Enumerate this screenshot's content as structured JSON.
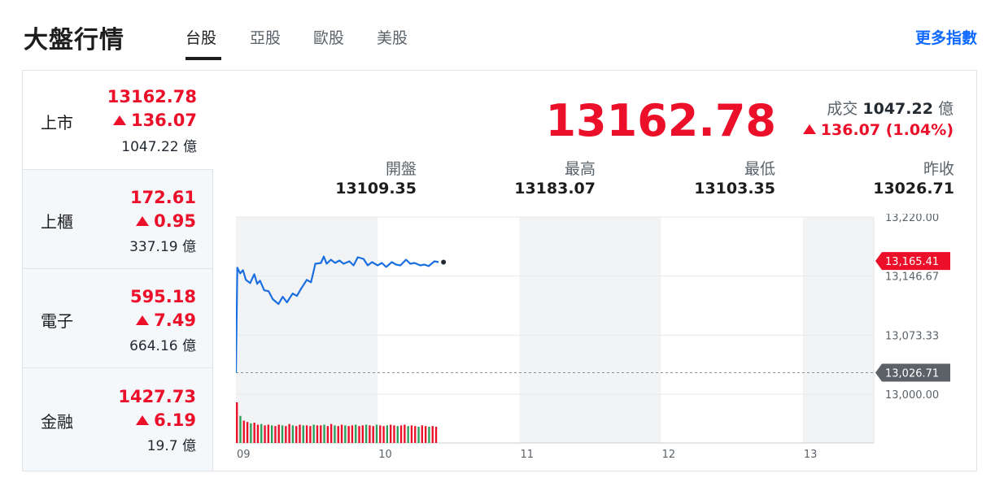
{
  "header": {
    "title": "大盤行情",
    "tabs": [
      {
        "label": "台股",
        "active": true
      },
      {
        "label": "亞股",
        "active": false
      },
      {
        "label": "歐股",
        "active": false
      },
      {
        "label": "美股",
        "active": false
      }
    ],
    "more_link": "更多指數"
  },
  "sidebar": {
    "items": [
      {
        "name": "上市",
        "price": "13162.78",
        "change": "136.07",
        "volume": "1047.22",
        "unit": "億"
      },
      {
        "name": "上櫃",
        "price": "172.61",
        "change": "0.95",
        "volume": "337.19",
        "unit": "億"
      },
      {
        "name": "電子",
        "price": "595.18",
        "change": "7.49",
        "volume": "664.16",
        "unit": "億"
      },
      {
        "name": "金融",
        "price": "1427.73",
        "change": "6.19",
        "volume": "19.7",
        "unit": "億"
      }
    ]
  },
  "main": {
    "price": "13162.78",
    "volume_label": "成交",
    "volume_value": "1047.22",
    "volume_unit": "億",
    "change": "136.07 (1.04%)",
    "stats": [
      {
        "label": "開盤",
        "value": "13109.35"
      },
      {
        "label": "最高",
        "value": "13183.07"
      },
      {
        "label": "最低",
        "value": "13103.35"
      },
      {
        "label": "昨收",
        "value": "13026.71"
      }
    ]
  },
  "colors": {
    "up": "#eb0f29",
    "line": "#1a6fe0",
    "accent": "#0f69ff",
    "grey_label": "#5b636a"
  },
  "chart_data": {
    "type": "line",
    "x_ticks": [
      "09",
      "10",
      "11",
      "12",
      "13"
    ],
    "y_ticks": [
      "13,220.00",
      "13,146.67",
      "13,073.33",
      "13,000.00"
    ],
    "ylim": [
      13000,
      13220
    ],
    "xlim": [
      9,
      13.5
    ],
    "current_label": "13,165.41",
    "current_value": 13165.41,
    "prev_close_label": "13,026.71",
    "prev_close_value": 13026.71,
    "series": [
      {
        "x": [
          9.0,
          9.01,
          9.03,
          9.05,
          9.07,
          9.1,
          9.13,
          9.15,
          9.17,
          9.2,
          9.23,
          9.26,
          9.3,
          9.33,
          9.36,
          9.4,
          9.43,
          9.46,
          9.5,
          9.53,
          9.56,
          9.6,
          9.62,
          9.64,
          9.67,
          9.7,
          9.73,
          9.76,
          9.8,
          9.83,
          9.86,
          9.9,
          9.93,
          9.96,
          10.0,
          10.03,
          10.06,
          10.1,
          10.13,
          10.16,
          10.2,
          10.23,
          10.26,
          10.3,
          10.33,
          10.36,
          10.4,
          10.43
        ],
        "y": [
          13026.71,
          13157,
          13150,
          13154,
          13142,
          13138,
          13149,
          13137,
          13141,
          13129,
          13128,
          13118,
          13112,
          13121,
          13114,
          13125,
          13122,
          13131,
          13142,
          13139,
          13162,
          13163,
          13171,
          13162,
          13167,
          13163,
          13166,
          13162,
          13165,
          13160,
          13170,
          13168,
          13160,
          13164,
          13160,
          13163,
          13158,
          13164,
          13161,
          13160,
          13167,
          13162,
          13163,
          13160,
          13161,
          13159,
          13165,
          13164
        ]
      }
    ],
    "volume_bars": [
      60,
      40,
      33,
      31,
      29,
      30,
      27,
      28,
      26,
      27,
      26,
      25,
      27,
      26,
      25,
      28,
      26,
      25,
      27,
      26,
      26,
      25,
      27,
      26,
      26,
      27,
      25,
      28,
      26,
      25,
      27,
      26,
      25,
      26,
      27,
      25,
      26,
      27,
      26,
      25,
      27,
      26,
      25,
      26,
      27,
      26,
      25,
      26,
      27,
      25,
      26,
      25,
      24,
      26,
      25,
      24,
      25,
      24
    ]
  }
}
